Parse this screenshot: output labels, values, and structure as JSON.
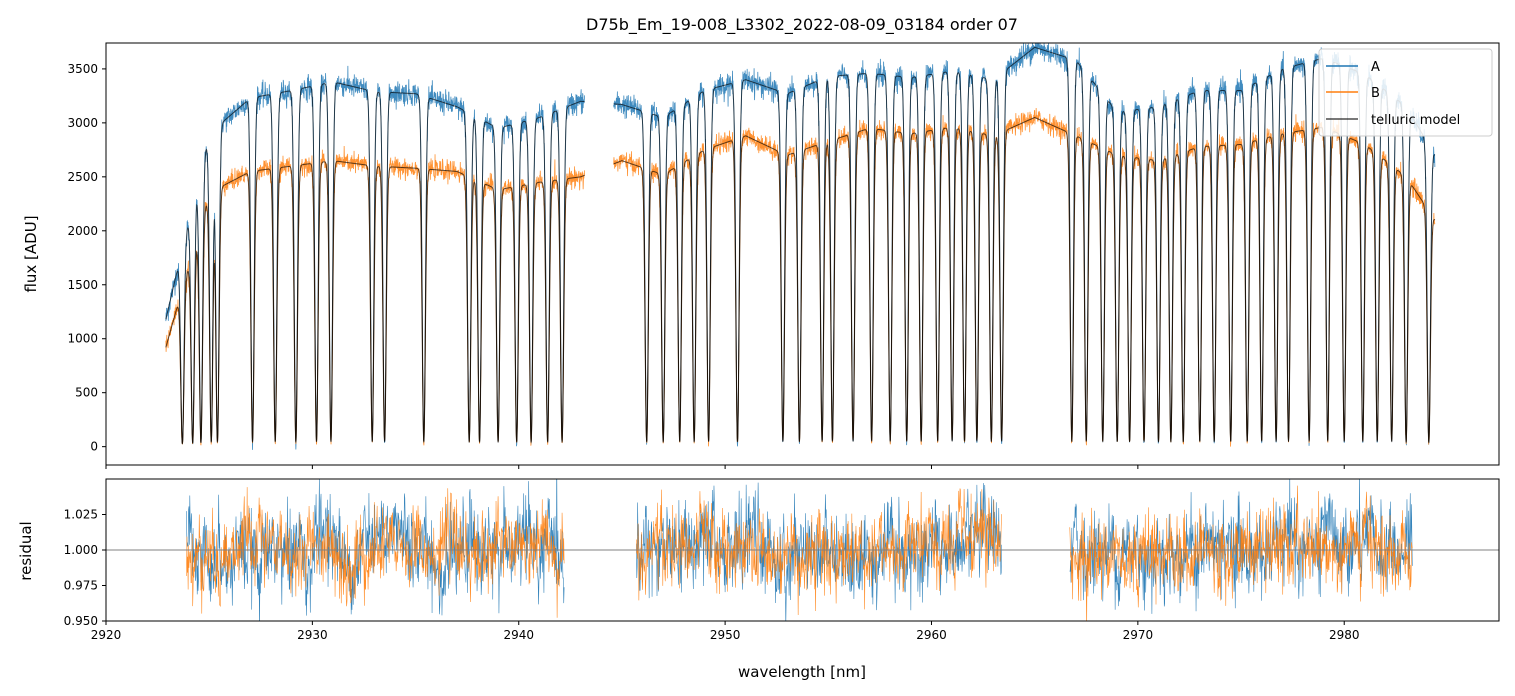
{
  "chart_data": {
    "title": "D75b_Em_19-008_L3302_2022-08-09_03184  order 07",
    "type": "line",
    "xlabel": "wavelength [nm]",
    "xlim": [
      2920.0,
      2987.5
    ],
    "xticks": [
      2920,
      2930,
      2940,
      2950,
      2960,
      2970,
      2980
    ],
    "colors": {
      "A": "#1f77b4",
      "B": "#ff7f0e",
      "model": "#000000",
      "reference": "#808080"
    },
    "panels": [
      {
        "id": "flux",
        "ylabel": "flux [ADU]",
        "ylim": [
          -170,
          3740
        ],
        "yticks": [
          0,
          500,
          1000,
          1500,
          2000,
          2500,
          3000,
          3500
        ],
        "legend": {
          "placement": "top-right",
          "entries": [
            "A",
            "B",
            "telluric model"
          ]
        },
        "segments": [
          [
            2922.9,
            2943.2
          ],
          [
            2944.6,
            2984.4
          ]
        ],
        "continuum_A": {
          "x": [
            2922.9,
            2925,
            2927,
            2929,
            2931,
            2933,
            2935,
            2937,
            2939,
            2941,
            2943,
            2945,
            2947,
            2949,
            2951,
            2953,
            2955,
            2957,
            2959,
            2961,
            2963,
            2965,
            2967,
            2969,
            2971,
            2973,
            2975,
            2977,
            2979,
            2981,
            2983,
            2984.4
          ],
          "y": [
            1180,
            2900,
            3230,
            3300,
            3380,
            3290,
            3270,
            3150,
            2950,
            3050,
            3200,
            3170,
            3050,
            3300,
            3400,
            3270,
            3430,
            3460,
            3420,
            3480,
            3400,
            3700,
            3580,
            3100,
            3150,
            3300,
            3300,
            3500,
            3600,
            3450,
            3150,
            2700
          ]
        },
        "continuum_B": {
          "x": [
            2922.9,
            2925,
            2927,
            2929,
            2931,
            2933,
            2935,
            2937,
            2939,
            2941,
            2943,
            2945,
            2947,
            2949,
            2951,
            2953,
            2955,
            2957,
            2959,
            2961,
            2963,
            2965,
            2967,
            2969,
            2971,
            2973,
            2975,
            2977,
            2979,
            2981,
            2983,
            2984.4
          ],
          "y": [
            920,
            2350,
            2550,
            2600,
            2650,
            2600,
            2580,
            2550,
            2380,
            2450,
            2500,
            2650,
            2520,
            2750,
            2880,
            2700,
            2830,
            2950,
            2900,
            2960,
            2880,
            3050,
            2880,
            2700,
            2650,
            2780,
            2800,
            2900,
            2960,
            2800,
            2500,
            2100
          ]
        },
        "absorption_lines_nm": [
          2923.7,
          2924.2,
          2924.6,
          2925.1,
          2925.4,
          2927.1,
          2928.2,
          2929.2,
          2930.2,
          2930.9,
          2932.9,
          2933.5,
          2935.4,
          2937.6,
          2938.1,
          2939.0,
          2939.9,
          2940.6,
          2941.4,
          2942.1,
          2946.2,
          2947.0,
          2947.8,
          2948.5,
          2949.2,
          2950.6,
          2952.8,
          2953.6,
          2954.7,
          2955.2,
          2956.2,
          2957.1,
          2958.0,
          2958.8,
          2959.5,
          2960.3,
          2961.0,
          2961.6,
          2962.2,
          2962.9,
          2963.4,
          2966.8,
          2967.5,
          2968.3,
          2969.0,
          2969.6,
          2970.3,
          2971.0,
          2971.6,
          2972.2,
          2973.0,
          2973.7,
          2974.5,
          2975.3,
          2976.0,
          2976.7,
          2977.3,
          2978.3,
          2979.2,
          2980.0,
          2980.9,
          2981.6,
          2982.3,
          2983.0,
          2984.1
        ]
      },
      {
        "id": "residual",
        "ylabel": "residual",
        "ylim": [
          0.95,
          1.05
        ],
        "yticks": [
          0.95,
          0.975,
          1.0,
          1.025
        ],
        "ytick_labels": [
          "0.950",
          "0.975",
          "1.000",
          "1.025"
        ],
        "reference_line": 1.0,
        "segments": [
          [
            2923.9,
            2942.2
          ],
          [
            2945.7,
            2963.4
          ],
          [
            2966.7,
            2983.3
          ]
        ],
        "noise_sigma": 0.014
      }
    ]
  }
}
